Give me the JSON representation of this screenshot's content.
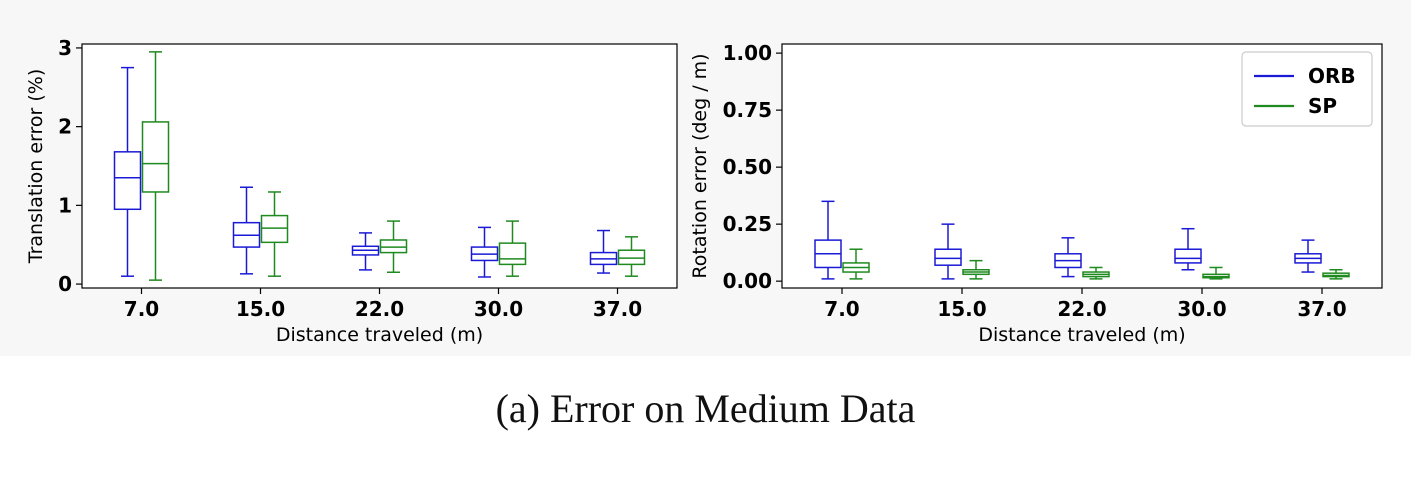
{
  "caption": "(a) Error on Medium Data",
  "colors": {
    "ORB": "#1a1ad6",
    "SP": "#1f8a1f"
  },
  "chart_data": [
    {
      "type": "boxplot",
      "xlabel": "Distance traveled (m)",
      "ylabel": "Translation error (%)",
      "categories": [
        "7.0",
        "15.0",
        "22.0",
        "30.0",
        "37.0"
      ],
      "ylim": [
        -0.05,
        3.05
      ],
      "yticks": [
        0,
        1,
        2,
        3
      ],
      "ytick_labels": [
        "0",
        "1",
        "2",
        "3"
      ],
      "series": [
        {
          "name": "ORB",
          "boxes": [
            {
              "min": 0.1,
              "q1": 0.95,
              "median": 1.35,
              "q3": 1.68,
              "max": 2.75
            },
            {
              "min": 0.13,
              "q1": 0.47,
              "median": 0.62,
              "q3": 0.78,
              "max": 1.23
            },
            {
              "min": 0.18,
              "q1": 0.37,
              "median": 0.43,
              "q3": 0.48,
              "max": 0.65
            },
            {
              "min": 0.09,
              "q1": 0.3,
              "median": 0.38,
              "q3": 0.47,
              "max": 0.72
            },
            {
              "min": 0.14,
              "q1": 0.25,
              "median": 0.32,
              "q3": 0.4,
              "max": 0.68
            }
          ]
        },
        {
          "name": "SP",
          "boxes": [
            {
              "min": 0.05,
              "q1": 1.17,
              "median": 1.53,
              "q3": 2.06,
              "max": 2.95
            },
            {
              "min": 0.1,
              "q1": 0.53,
              "median": 0.71,
              "q3": 0.87,
              "max": 1.17
            },
            {
              "min": 0.15,
              "q1": 0.4,
              "median": 0.47,
              "q3": 0.56,
              "max": 0.8
            },
            {
              "min": 0.1,
              "q1": 0.25,
              "median": 0.32,
              "q3": 0.52,
              "max": 0.8
            },
            {
              "min": 0.1,
              "q1": 0.25,
              "median": 0.33,
              "q3": 0.43,
              "max": 0.6
            }
          ]
        }
      ]
    },
    {
      "type": "boxplot",
      "xlabel": "Distance traveled (m)",
      "ylabel": "Rotation error (deg / m)",
      "categories": [
        "7.0",
        "15.0",
        "22.0",
        "30.0",
        "37.0"
      ],
      "ylim": [
        -0.03,
        1.04
      ],
      "yticks": [
        0,
        0.25,
        0.5,
        0.75,
        1.0
      ],
      "ytick_labels": [
        "0.00",
        "0.25",
        "0.50",
        "0.75",
        "1.00"
      ],
      "legend": {
        "position": "top-right",
        "entries": [
          "ORB",
          "SP"
        ]
      },
      "series": [
        {
          "name": "ORB",
          "boxes": [
            {
              "min": 0.01,
              "q1": 0.06,
              "median": 0.12,
              "q3": 0.18,
              "max": 0.35
            },
            {
              "min": 0.01,
              "q1": 0.07,
              "median": 0.1,
              "q3": 0.14,
              "max": 0.25
            },
            {
              "min": 0.02,
              "q1": 0.06,
              "median": 0.09,
              "q3": 0.12,
              "max": 0.19
            },
            {
              "min": 0.05,
              "q1": 0.08,
              "median": 0.1,
              "q3": 0.14,
              "max": 0.23
            },
            {
              "min": 0.04,
              "q1": 0.08,
              "median": 0.1,
              "q3": 0.12,
              "max": 0.18
            }
          ]
        },
        {
          "name": "SP",
          "boxes": [
            {
              "min": 0.01,
              "q1": 0.04,
              "median": 0.06,
              "q3": 0.08,
              "max": 0.14
            },
            {
              "min": 0.01,
              "q1": 0.03,
              "median": 0.04,
              "q3": 0.05,
              "max": 0.09
            },
            {
              "min": 0.01,
              "q1": 0.02,
              "median": 0.03,
              "q3": 0.04,
              "max": 0.06
            },
            {
              "min": 0.01,
              "q1": 0.015,
              "median": 0.02,
              "q3": 0.03,
              "max": 0.06
            },
            {
              "min": 0.01,
              "q1": 0.02,
              "median": 0.025,
              "q3": 0.035,
              "max": 0.05
            }
          ]
        }
      ]
    }
  ]
}
